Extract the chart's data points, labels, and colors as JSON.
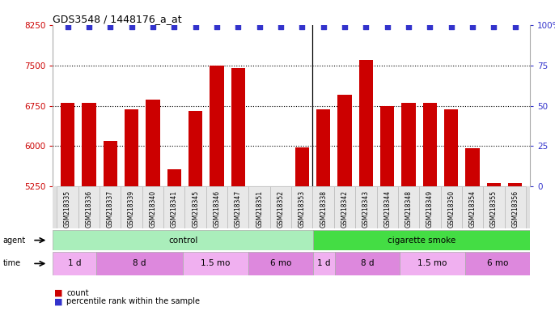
{
  "title": "GDS3548 / 1448176_a_at",
  "samples": [
    "GSM218335",
    "GSM218336",
    "GSM218337",
    "GSM218339",
    "GSM218340",
    "GSM218341",
    "GSM218345",
    "GSM218346",
    "GSM218347",
    "GSM218351",
    "GSM218352",
    "GSM218353",
    "GSM218338",
    "GSM218342",
    "GSM218343",
    "GSM218344",
    "GSM218348",
    "GSM218349",
    "GSM218350",
    "GSM218354",
    "GSM218355",
    "GSM218356"
  ],
  "counts": [
    6800,
    6800,
    6100,
    6680,
    6870,
    5570,
    6660,
    7500,
    7450,
    5260,
    5260,
    5970,
    6680,
    6950,
    7600,
    6750,
    6800,
    6800,
    6680,
    5960,
    5310,
    5320
  ],
  "ylim_left": [
    5250,
    8250
  ],
  "yticks_left": [
    5250,
    6000,
    6750,
    7500,
    8250
  ],
  "ylim_right": [
    0,
    100
  ],
  "yticks_right": [
    0,
    25,
    50,
    75,
    100
  ],
  "yticklabels_right": [
    "0",
    "25",
    "50",
    "75",
    "100%"
  ],
  "bar_color": "#cc0000",
  "dot_color": "#3333cc",
  "agent_groups": [
    {
      "label": "control",
      "start": 0,
      "end": 12,
      "color": "#aaeebb"
    },
    {
      "label": "cigarette smoke",
      "start": 12,
      "end": 22,
      "color": "#44dd44"
    }
  ],
  "time_groups": [
    {
      "label": "1 d",
      "start": 0,
      "end": 2,
      "color": "#f0b0f0"
    },
    {
      "label": "8 d",
      "start": 2,
      "end": 6,
      "color": "#dd88dd"
    },
    {
      "label": "1.5 mo",
      "start": 6,
      "end": 9,
      "color": "#f0b0f0"
    },
    {
      "label": "6 mo",
      "start": 9,
      "end": 12,
      "color": "#dd88dd"
    },
    {
      "label": "1 d",
      "start": 12,
      "end": 13,
      "color": "#f0b0f0"
    },
    {
      "label": "8 d",
      "start": 13,
      "end": 16,
      "color": "#dd88dd"
    },
    {
      "label": "1.5 mo",
      "start": 16,
      "end": 19,
      "color": "#f0b0f0"
    },
    {
      "label": "6 mo",
      "start": 19,
      "end": 22,
      "color": "#dd88dd"
    }
  ],
  "legend_count_color": "#cc0000",
  "legend_dot_color": "#3333cc"
}
